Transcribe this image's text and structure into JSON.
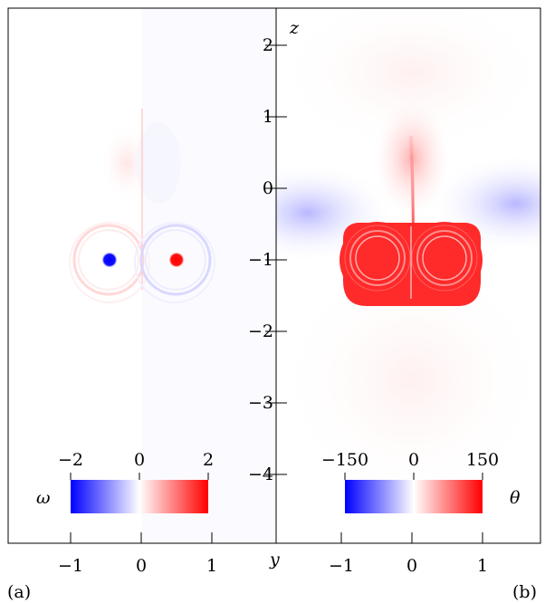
{
  "figure": {
    "panel_a_label": "(a)",
    "panel_b_label": "(b)"
  },
  "chart_data": [
    {
      "type": "heatmap",
      "panel": "(a)",
      "quantity": "ω",
      "xlabel": "",
      "ylabel": "",
      "x_ticks": [
        -1,
        0,
        1
      ],
      "x_tick_labels": [
        "−1",
        "0",
        "1"
      ],
      "xlim": [
        -1.9,
        1.9
      ],
      "ylim": [
        -4.9,
        2.5
      ],
      "colorbar": {
        "label": "ω",
        "min": -2,
        "max": 2,
        "ticks": [
          -2,
          0,
          2
        ],
        "tick_labels": [
          "−2",
          "0",
          "2"
        ],
        "colormap": "blue-white-red"
      },
      "features": [
        {
          "name": "negative vortex core",
          "y": -0.47,
          "z": -1.0,
          "value": -2
        },
        {
          "name": "positive vortex core",
          "y": 0.47,
          "z": -1.0,
          "value": 2
        }
      ]
    },
    {
      "type": "heatmap",
      "panel": "(b)",
      "quantity": "θ",
      "xlabel": "y",
      "ylabel": "z",
      "x_ticks": [
        -1,
        0,
        1
      ],
      "x_tick_labels": [
        "−1",
        "0",
        "1"
      ],
      "y_ticks": [
        2,
        1,
        0,
        -1,
        -2,
        -3,
        -4
      ],
      "y_tick_labels": [
        "2",
        "1",
        "0",
        "−1",
        "−2",
        "−3",
        "−4"
      ],
      "xlim": [
        -1.9,
        1.9
      ],
      "ylim": [
        -4.9,
        2.5
      ],
      "colorbar": {
        "label": "θ",
        "min": -150,
        "max": 150,
        "ticks": [
          -150,
          0,
          150
        ],
        "tick_labels": [
          "−150",
          "0",
          "150"
        ],
        "colormap": "blue-white-red"
      },
      "features": [
        {
          "name": "heated vortex pair",
          "center_z": -1.15,
          "value": 150
        },
        {
          "name": "side regions",
          "value": -30
        },
        {
          "name": "plume above",
          "value": 20
        }
      ]
    }
  ]
}
